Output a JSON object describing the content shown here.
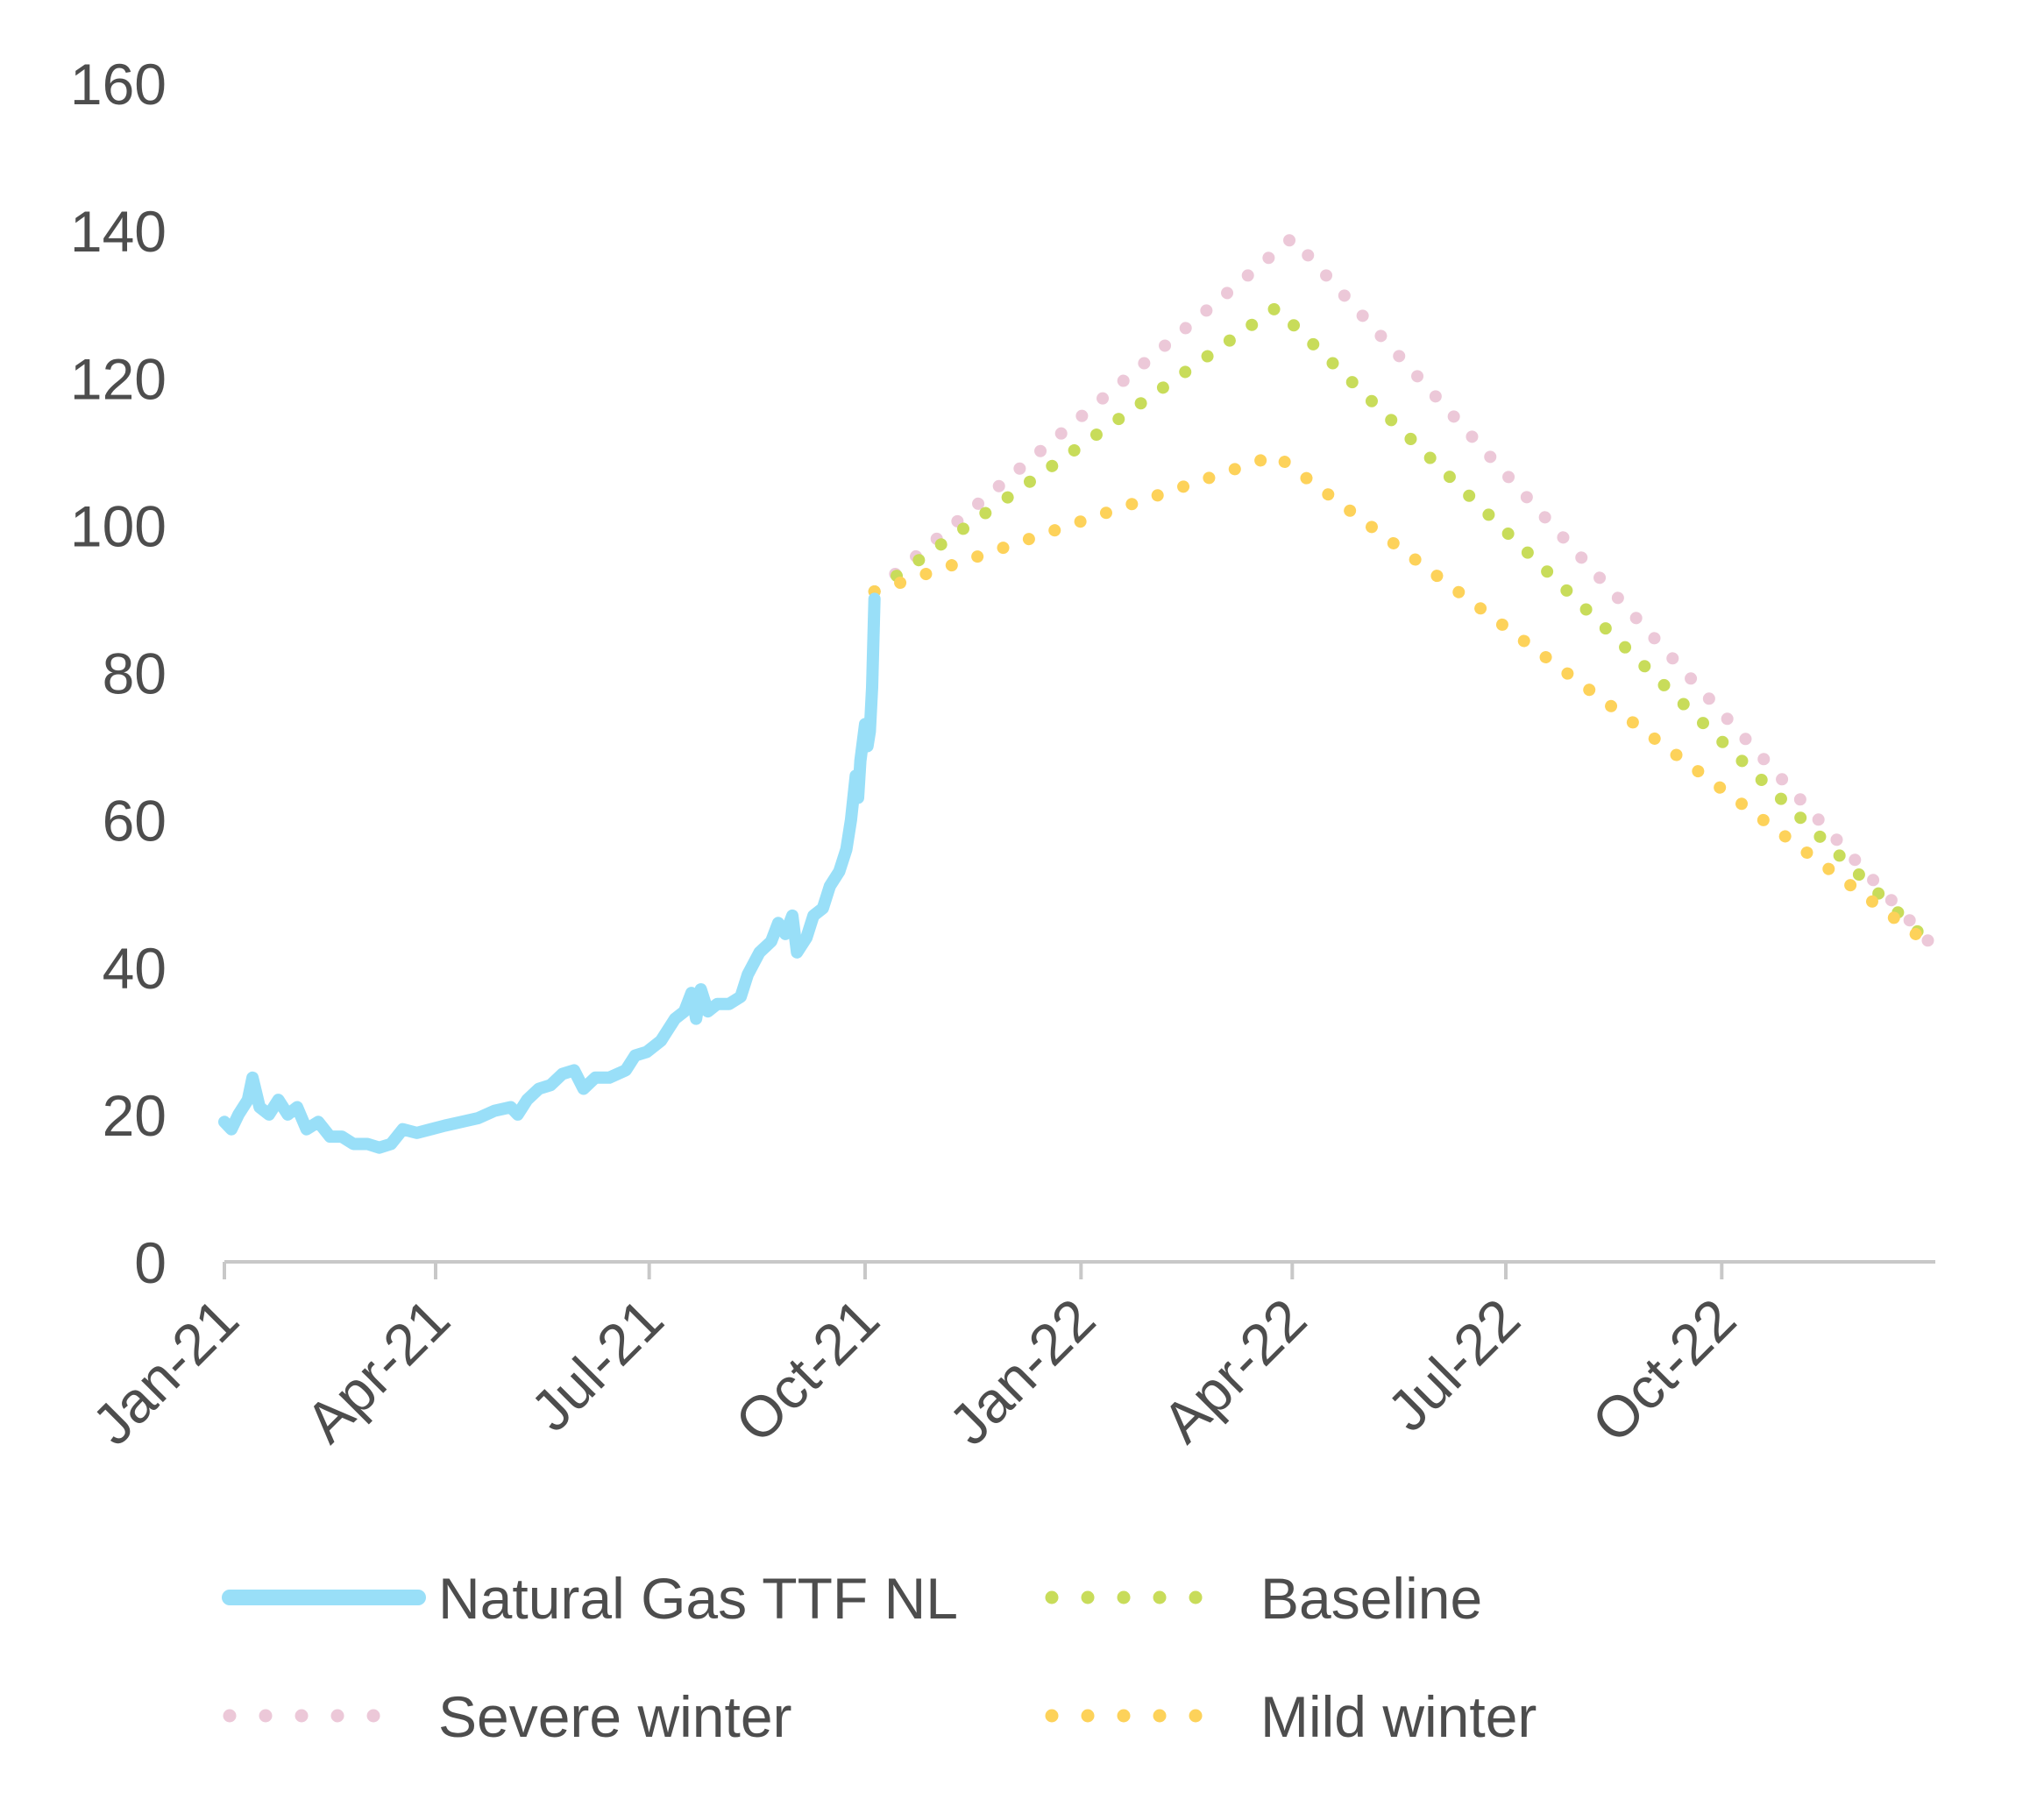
{
  "chart_data": {
    "type": "line",
    "title": "",
    "xlabel": "",
    "ylabel": "",
    "ylim": [
      0,
      160
    ],
    "xlim": [
      "2021-01-01",
      "2022-12-31"
    ],
    "y_ticks": [
      0,
      20,
      40,
      60,
      80,
      100,
      120,
      140,
      160
    ],
    "x_ticks": [
      {
        "date": "2021-01-01",
        "label": "Jan-21"
      },
      {
        "date": "2021-04-01",
        "label": "Apr-21"
      },
      {
        "date": "2021-07-01",
        "label": "Jul-21"
      },
      {
        "date": "2021-10-01",
        "label": "Oct-21"
      },
      {
        "date": "2022-01-01",
        "label": "Jan-22"
      },
      {
        "date": "2022-04-01",
        "label": "Apr-22"
      },
      {
        "date": "2022-07-01",
        "label": "Jul-22"
      },
      {
        "date": "2022-10-01",
        "label": "Oct-22"
      }
    ],
    "grid": false,
    "legend_position": "bottom",
    "series": [
      {
        "name": "Natural Gas TTF NL",
        "style": "solid",
        "color": "#99dff8",
        "points": [
          [
            "2021-01-01",
            19
          ],
          [
            "2021-01-04",
            18
          ],
          [
            "2021-01-07",
            20
          ],
          [
            "2021-01-11",
            22
          ],
          [
            "2021-01-13",
            25
          ],
          [
            "2021-01-16",
            21
          ],
          [
            "2021-01-20",
            20
          ],
          [
            "2021-01-24",
            22
          ],
          [
            "2021-01-28",
            20
          ],
          [
            "2021-02-01",
            21
          ],
          [
            "2021-02-05",
            18
          ],
          [
            "2021-02-10",
            19
          ],
          [
            "2021-02-15",
            17
          ],
          [
            "2021-02-20",
            17
          ],
          [
            "2021-02-25",
            16
          ],
          [
            "2021-03-03",
            16
          ],
          [
            "2021-03-08",
            15.5
          ],
          [
            "2021-03-13",
            16
          ],
          [
            "2021-03-18",
            18
          ],
          [
            "2021-03-24",
            17.5
          ],
          [
            "2021-03-30",
            18
          ],
          [
            "2021-04-05",
            18.5
          ],
          [
            "2021-04-12",
            19
          ],
          [
            "2021-04-19",
            19.5
          ],
          [
            "2021-04-26",
            20.5
          ],
          [
            "2021-05-03",
            21
          ],
          [
            "2021-05-06",
            20
          ],
          [
            "2021-05-10",
            22
          ],
          [
            "2021-05-15",
            23.5
          ],
          [
            "2021-05-20",
            24
          ],
          [
            "2021-05-25",
            25.5
          ],
          [
            "2021-05-30",
            26
          ],
          [
            "2021-06-03",
            23.5
          ],
          [
            "2021-06-08",
            25
          ],
          [
            "2021-06-14",
            25
          ],
          [
            "2021-06-21",
            26
          ],
          [
            "2021-06-25",
            28
          ],
          [
            "2021-06-30",
            28.5
          ],
          [
            "2021-07-06",
            30
          ],
          [
            "2021-07-12",
            33
          ],
          [
            "2021-07-16",
            34
          ],
          [
            "2021-07-19",
            36.5
          ],
          [
            "2021-07-21",
            33
          ],
          [
            "2021-07-23",
            37
          ],
          [
            "2021-07-26",
            34
          ],
          [
            "2021-07-30",
            35
          ],
          [
            "2021-08-04",
            35
          ],
          [
            "2021-08-09",
            36
          ],
          [
            "2021-08-12",
            39
          ],
          [
            "2021-08-17",
            42
          ],
          [
            "2021-08-22",
            43.5
          ],
          [
            "2021-08-25",
            46
          ],
          [
            "2021-08-28",
            44.5
          ],
          [
            "2021-08-31",
            47
          ],
          [
            "2021-09-02",
            42
          ],
          [
            "2021-09-06",
            44
          ],
          [
            "2021-09-09",
            47
          ],
          [
            "2021-09-13",
            48
          ],
          [
            "2021-09-16",
            51
          ],
          [
            "2021-09-20",
            53
          ],
          [
            "2021-09-23",
            56
          ],
          [
            "2021-09-25",
            60
          ],
          [
            "2021-09-27",
            66
          ],
          [
            "2021-09-28",
            63
          ],
          [
            "2021-09-29",
            68
          ],
          [
            "2021-10-01",
            73
          ],
          [
            "2021-10-02",
            70
          ],
          [
            "2021-10-03",
            72
          ],
          [
            "2021-10-04",
            78
          ],
          [
            "2021-10-05",
            90
          ]
        ]
      },
      {
        "name": "Baseline",
        "style": "dotted",
        "color": "#c8dc5a",
        "points": [
          [
            "2021-10-05",
            91
          ],
          [
            "2022-03-25",
            129.5
          ],
          [
            "2022-12-31",
            42.5
          ]
        ]
      },
      {
        "name": "Severe winter",
        "style": "dotted",
        "color": "#ecc8d8",
        "points": [
          [
            "2021-10-05",
            91
          ],
          [
            "2022-04-01",
            139
          ],
          [
            "2022-12-31",
            42.5
          ]
        ]
      },
      {
        "name": "Mild winter",
        "style": "dotted",
        "color": "#fdd25a",
        "points": [
          [
            "2021-10-05",
            91
          ],
          [
            "2022-03-25",
            109.5
          ],
          [
            "2022-12-31",
            42.5
          ]
        ]
      }
    ]
  }
}
